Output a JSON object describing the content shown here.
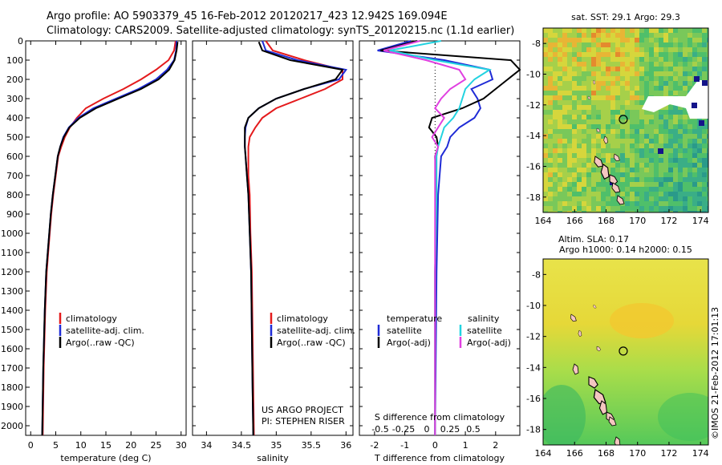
{
  "title_line1": "Argo profile: AO 5903379_45 16-Feb-2012 20120217_423 12.942S 169.094E",
  "title_line2": "Climatology: CARS2009. Satellite-adjusted climatology: synTS_20120215.nc (1.1d earlier)",
  "credit_line1": "US ARGO PROJECT",
  "credit_line2": "PI: STEPHEN RISER",
  "timestamp": "©IMOS 21-Feb-2012 17:01:13",
  "colors": {
    "climatology": "#e41a1c",
    "satellite": "#1f2bd6",
    "argo": "#000000",
    "sat_salt": "#22d3e0",
    "argo_salt": "#e040e0"
  },
  "chart_data": [
    {
      "type": "line",
      "panel": "temperature",
      "xlabel": "temperature (deg C)",
      "ylabel": "",
      "xlim": [
        -1,
        31
      ],
      "ylim": [
        2050,
        0
      ],
      "xticks": [
        "0",
        "5",
        "10",
        "15",
        "20",
        "25",
        "30"
      ],
      "yticks": [
        "0",
        "100",
        "200",
        "300",
        "400",
        "500",
        "600",
        "700",
        "800",
        "900",
        "1000",
        "1100",
        "1200",
        "1300",
        "1400",
        "1500",
        "1600",
        "1700",
        "1800",
        "1900",
        "2000"
      ],
      "legend": [
        "climatology",
        "satellite-adj. clim.",
        "Argo(..raw -QC)"
      ],
      "series": [
        {
          "name": "climatology",
          "color": "#e41a1c",
          "x": [
            28.9,
            28.6,
            27.5,
            25,
            22,
            18.5,
            14.5,
            11,
            9.2,
            7.8,
            6.8,
            6.1,
            5.5,
            5.0,
            4.5,
            4.1,
            3.8,
            3.5,
            3.2,
            2.9,
            2.6,
            2.4
          ],
          "y": [
            0,
            50,
            100,
            150,
            200,
            250,
            300,
            350,
            400,
            450,
            500,
            550,
            600,
            700,
            800,
            900,
            1000,
            1100,
            1200,
            1400,
            1700,
            2050
          ]
        },
        {
          "name": "satellite-adj. clim.",
          "color": "#1f2bd6",
          "x": [
            29.1,
            29,
            28.6,
            27.2,
            25,
            21.5,
            17,
            12.5,
            9.5,
            7.6,
            6.5,
            5.9,
            5.4,
            4.9,
            4.4,
            4.0,
            3.7,
            3.4,
            3.1,
            2.8,
            2.5,
            2.3
          ],
          "y": [
            0,
            50,
            100,
            150,
            200,
            250,
            300,
            350,
            400,
            450,
            500,
            550,
            600,
            700,
            800,
            900,
            1000,
            1100,
            1200,
            1400,
            1700,
            2050
          ]
        },
        {
          "name": "Argo(..raw -QC)",
          "color": "#000000",
          "x": [
            29.3,
            29.1,
            28.7,
            27.6,
            25.5,
            22,
            17.5,
            13,
            9.8,
            7.7,
            6.6,
            5.9,
            5.4,
            4.9,
            4.4,
            4.0,
            3.7,
            3.4,
            3.1,
            2.8,
            2.5,
            2.3
          ],
          "y": [
            5,
            50,
            100,
            150,
            200,
            250,
            300,
            350,
            400,
            450,
            500,
            550,
            600,
            700,
            800,
            900,
            1000,
            1100,
            1200,
            1400,
            1700,
            2050
          ]
        }
      ]
    },
    {
      "type": "line",
      "panel": "salinity",
      "xlabel": "salinity",
      "ylabel": "",
      "xlim": [
        33.8,
        36.1
      ],
      "ylim": [
        2050,
        0
      ],
      "xticks": [
        "34",
        "34.5",
        "35",
        "35.5",
        "36"
      ],
      "legend": [
        "climatology",
        "satellite-adj. clim.",
        "Argo(..raw -QC)"
      ],
      "series": [
        {
          "name": "climatology",
          "color": "#e41a1c",
          "x": [
            34.85,
            34.95,
            35.4,
            35.95,
            35.95,
            35.7,
            35.35,
            35.0,
            34.8,
            34.7,
            34.62,
            34.6,
            34.6,
            34.6,
            34.62,
            34.63,
            34.65,
            34.66,
            34.67,
            34.68
          ],
          "y": [
            0,
            50,
            100,
            150,
            200,
            250,
            300,
            350,
            400,
            450,
            500,
            550,
            600,
            700,
            800,
            1000,
            1200,
            1500,
            1800,
            2050
          ]
        },
        {
          "name": "satellite-adj. clim.",
          "color": "#1f2bd6",
          "x": [
            34.8,
            34.85,
            35.3,
            36.0,
            35.9,
            35.4,
            35.0,
            34.75,
            34.6,
            34.56,
            34.55,
            34.55,
            34.56,
            34.58,
            34.6,
            34.62,
            34.64,
            34.65,
            34.66,
            34.67
          ],
          "y": [
            0,
            50,
            100,
            150,
            200,
            250,
            300,
            350,
            400,
            450,
            500,
            550,
            600,
            700,
            800,
            1000,
            1200,
            1500,
            1800,
            2050
          ]
        },
        {
          "name": "Argo(..raw -QC)",
          "color": "#000000",
          "x": [
            34.75,
            34.8,
            35.2,
            35.95,
            35.85,
            35.4,
            35.0,
            34.75,
            34.6,
            34.55,
            34.55,
            34.55,
            34.56,
            34.58,
            34.6,
            34.62,
            34.64,
            34.65,
            34.66,
            34.67
          ],
          "y": [
            5,
            50,
            100,
            150,
            200,
            250,
            300,
            350,
            400,
            450,
            500,
            550,
            600,
            700,
            800,
            1000,
            1200,
            1500,
            1800,
            2050
          ]
        }
      ]
    },
    {
      "type": "line",
      "panel": "difference",
      "xlabel": "T difference from climatology",
      "x2label": "S difference from climatology",
      "xlim": [
        -2.5,
        2.8
      ],
      "ylim": [
        2050,
        0
      ],
      "xticks": [
        "-2",
        "-1",
        "0",
        "1",
        "2"
      ],
      "x2ticks": [
        "-0.5",
        "-0.25",
        "0",
        "0.25",
        "0.5"
      ],
      "legend_left": [
        "temperature",
        "satellite",
        "Argo(-adj)"
      ],
      "legend_right": [
        "salinity",
        "satellite",
        "Argo(-adj)"
      ],
      "series": [
        {
          "name": "satellite",
          "color": "#1f2bd6",
          "x": [
            -0.8,
            -1.9,
            0.3,
            1.8,
            1.9,
            1.2,
            1.4,
            1.5,
            1.3,
            0.8,
            0.5,
            0.4,
            0.2,
            0.1,
            0.05,
            0.0
          ],
          "y": [
            0,
            50,
            100,
            150,
            200,
            250,
            300,
            350,
            400,
            450,
            500,
            550,
            600,
            800,
            1200,
            2050
          ]
        },
        {
          "name": "Argo(-adj)",
          "color": "#000000",
          "x": [
            -0.6,
            -1.8,
            2.5,
            2.8,
            2.4,
            2.0,
            1.6,
            0.9,
            -0.1,
            -0.2,
            0.05,
            0.1,
            0.0,
            0.05,
            0.0,
            0.0
          ],
          "y": [
            0,
            50,
            100,
            150,
            200,
            250,
            300,
            350,
            400,
            450,
            500,
            550,
            600,
            800,
            1200,
            2050
          ]
        },
        {
          "name": "satellite",
          "color": "#22d3e0",
          "x": [
            0.2,
            -1.5,
            0.0,
            1.8,
            1.3,
            1.0,
            0.9,
            0.8,
            0.6,
            0.3,
            0.2,
            0.1,
            0.05,
            0.05,
            0.0,
            0.0
          ],
          "y": [
            0,
            50,
            100,
            150,
            200,
            250,
            300,
            350,
            400,
            450,
            500,
            550,
            600,
            800,
            1200,
            2050
          ]
        },
        {
          "name": "Argo(-adj)",
          "color": "#e040e0",
          "x": [
            -0.5,
            -1.7,
            -0.3,
            0.8,
            1.0,
            0.5,
            0.2,
            0.0,
            0.3,
            0.1,
            -0.1,
            0.1,
            0.0,
            0.0,
            0.0,
            0.0
          ],
          "y": [
            0,
            50,
            100,
            150,
            200,
            250,
            300,
            350,
            400,
            450,
            500,
            550,
            600,
            800,
            1200,
            2050
          ]
        }
      ]
    },
    {
      "type": "heatmap",
      "panel": "sst_map",
      "title": "sat. SST: 29.1  Argo: 29.3",
      "xlim": [
        164,
        174.5
      ],
      "ylim": [
        -19,
        -7
      ],
      "xticks": [
        "164",
        "166",
        "168",
        "170",
        "172",
        "174"
      ],
      "yticks": [
        "-8",
        "-10",
        "-12",
        "-14",
        "-16",
        "-18"
      ],
      "marker": {
        "lon": 169.094,
        "lat": -12.942
      }
    },
    {
      "type": "heatmap",
      "panel": "sla_map",
      "title_line1": "Altim. SLA: 0.17",
      "title_line2": "Argo h1000: 0.14 h2000: 0.15",
      "xlim": [
        164,
        174.5
      ],
      "ylim": [
        -19,
        -7
      ],
      "xticks": [
        "164",
        "166",
        "168",
        "170",
        "172",
        "174"
      ],
      "yticks": [
        "-8",
        "-10",
        "-12",
        "-14",
        "-16",
        "-18"
      ],
      "marker": {
        "lon": 169.094,
        "lat": -12.942
      }
    }
  ]
}
